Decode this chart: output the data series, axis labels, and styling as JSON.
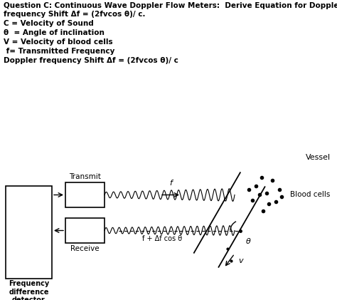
{
  "title_line1": "Question C: Continuous Wave Doppler Flow Meters:  Derive Equation for Doppler",
  "title_line2": "frequency Shift Δf = (2fvcos θ)/ c.",
  "line1": "C = Velocity of Sound",
  "line2": "θ  = Angle of inclination",
  "line3": "V = Velocity of blood cells",
  "line4": " f= Transmitted Frequency",
  "line5": "Doppler frequency Shift Δf = (2fvcos θ)/ c",
  "label_transmit": "Transmit",
  "label_receive": "Receive",
  "label_vessel": "Vessel",
  "label_blood_cells": "Blood cells",
  "label_freq_diff": "Frequency\ndifference\ndetector\nΔf",
  "label_f_arrow": "f",
  "label_freq_shift": "f + Δf cos θ",
  "label_theta": "θ",
  "label_v": "v",
  "bg_color": "#ffffff",
  "text_color": "#000000"
}
